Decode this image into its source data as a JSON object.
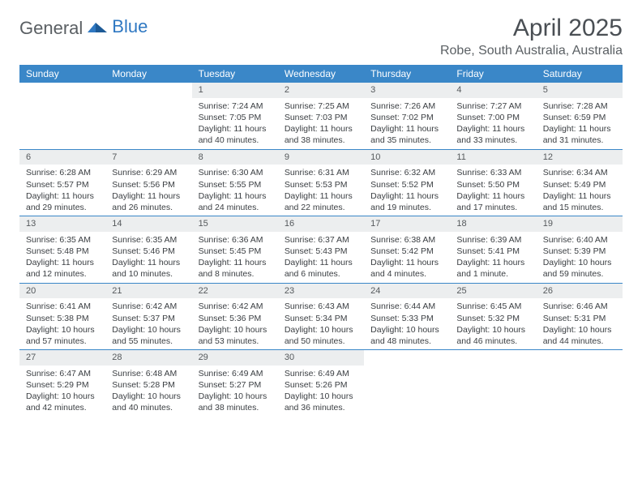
{
  "logo": {
    "part1": "General",
    "part2": "Blue"
  },
  "title": "April 2025",
  "location": "Robe, South Australia, Australia",
  "colors": {
    "header_bg": "#3a87c8",
    "header_text": "#ffffff",
    "daynum_bg": "#eceeef",
    "border": "#3a87c8",
    "text": "#3a3e42",
    "title_text": "#4a4f54"
  },
  "weekdays": [
    "Sunday",
    "Monday",
    "Tuesday",
    "Wednesday",
    "Thursday",
    "Friday",
    "Saturday"
  ],
  "weeks": [
    [
      {
        "n": "",
        "sr": "",
        "ss": "",
        "dl": ""
      },
      {
        "n": "",
        "sr": "",
        "ss": "",
        "dl": ""
      },
      {
        "n": "1",
        "sr": "Sunrise: 7:24 AM",
        "ss": "Sunset: 7:05 PM",
        "dl": "Daylight: 11 hours and 40 minutes."
      },
      {
        "n": "2",
        "sr": "Sunrise: 7:25 AM",
        "ss": "Sunset: 7:03 PM",
        "dl": "Daylight: 11 hours and 38 minutes."
      },
      {
        "n": "3",
        "sr": "Sunrise: 7:26 AM",
        "ss": "Sunset: 7:02 PM",
        "dl": "Daylight: 11 hours and 35 minutes."
      },
      {
        "n": "4",
        "sr": "Sunrise: 7:27 AM",
        "ss": "Sunset: 7:00 PM",
        "dl": "Daylight: 11 hours and 33 minutes."
      },
      {
        "n": "5",
        "sr": "Sunrise: 7:28 AM",
        "ss": "Sunset: 6:59 PM",
        "dl": "Daylight: 11 hours and 31 minutes."
      }
    ],
    [
      {
        "n": "6",
        "sr": "Sunrise: 6:28 AM",
        "ss": "Sunset: 5:57 PM",
        "dl": "Daylight: 11 hours and 29 minutes."
      },
      {
        "n": "7",
        "sr": "Sunrise: 6:29 AM",
        "ss": "Sunset: 5:56 PM",
        "dl": "Daylight: 11 hours and 26 minutes."
      },
      {
        "n": "8",
        "sr": "Sunrise: 6:30 AM",
        "ss": "Sunset: 5:55 PM",
        "dl": "Daylight: 11 hours and 24 minutes."
      },
      {
        "n": "9",
        "sr": "Sunrise: 6:31 AM",
        "ss": "Sunset: 5:53 PM",
        "dl": "Daylight: 11 hours and 22 minutes."
      },
      {
        "n": "10",
        "sr": "Sunrise: 6:32 AM",
        "ss": "Sunset: 5:52 PM",
        "dl": "Daylight: 11 hours and 19 minutes."
      },
      {
        "n": "11",
        "sr": "Sunrise: 6:33 AM",
        "ss": "Sunset: 5:50 PM",
        "dl": "Daylight: 11 hours and 17 minutes."
      },
      {
        "n": "12",
        "sr": "Sunrise: 6:34 AM",
        "ss": "Sunset: 5:49 PM",
        "dl": "Daylight: 11 hours and 15 minutes."
      }
    ],
    [
      {
        "n": "13",
        "sr": "Sunrise: 6:35 AM",
        "ss": "Sunset: 5:48 PM",
        "dl": "Daylight: 11 hours and 12 minutes."
      },
      {
        "n": "14",
        "sr": "Sunrise: 6:35 AM",
        "ss": "Sunset: 5:46 PM",
        "dl": "Daylight: 11 hours and 10 minutes."
      },
      {
        "n": "15",
        "sr": "Sunrise: 6:36 AM",
        "ss": "Sunset: 5:45 PM",
        "dl": "Daylight: 11 hours and 8 minutes."
      },
      {
        "n": "16",
        "sr": "Sunrise: 6:37 AM",
        "ss": "Sunset: 5:43 PM",
        "dl": "Daylight: 11 hours and 6 minutes."
      },
      {
        "n": "17",
        "sr": "Sunrise: 6:38 AM",
        "ss": "Sunset: 5:42 PM",
        "dl": "Daylight: 11 hours and 4 minutes."
      },
      {
        "n": "18",
        "sr": "Sunrise: 6:39 AM",
        "ss": "Sunset: 5:41 PM",
        "dl": "Daylight: 11 hours and 1 minute."
      },
      {
        "n": "19",
        "sr": "Sunrise: 6:40 AM",
        "ss": "Sunset: 5:39 PM",
        "dl": "Daylight: 10 hours and 59 minutes."
      }
    ],
    [
      {
        "n": "20",
        "sr": "Sunrise: 6:41 AM",
        "ss": "Sunset: 5:38 PM",
        "dl": "Daylight: 10 hours and 57 minutes."
      },
      {
        "n": "21",
        "sr": "Sunrise: 6:42 AM",
        "ss": "Sunset: 5:37 PM",
        "dl": "Daylight: 10 hours and 55 minutes."
      },
      {
        "n": "22",
        "sr": "Sunrise: 6:42 AM",
        "ss": "Sunset: 5:36 PM",
        "dl": "Daylight: 10 hours and 53 minutes."
      },
      {
        "n": "23",
        "sr": "Sunrise: 6:43 AM",
        "ss": "Sunset: 5:34 PM",
        "dl": "Daylight: 10 hours and 50 minutes."
      },
      {
        "n": "24",
        "sr": "Sunrise: 6:44 AM",
        "ss": "Sunset: 5:33 PM",
        "dl": "Daylight: 10 hours and 48 minutes."
      },
      {
        "n": "25",
        "sr": "Sunrise: 6:45 AM",
        "ss": "Sunset: 5:32 PM",
        "dl": "Daylight: 10 hours and 46 minutes."
      },
      {
        "n": "26",
        "sr": "Sunrise: 6:46 AM",
        "ss": "Sunset: 5:31 PM",
        "dl": "Daylight: 10 hours and 44 minutes."
      }
    ],
    [
      {
        "n": "27",
        "sr": "Sunrise: 6:47 AM",
        "ss": "Sunset: 5:29 PM",
        "dl": "Daylight: 10 hours and 42 minutes."
      },
      {
        "n": "28",
        "sr": "Sunrise: 6:48 AM",
        "ss": "Sunset: 5:28 PM",
        "dl": "Daylight: 10 hours and 40 minutes."
      },
      {
        "n": "29",
        "sr": "Sunrise: 6:49 AM",
        "ss": "Sunset: 5:27 PM",
        "dl": "Daylight: 10 hours and 38 minutes."
      },
      {
        "n": "30",
        "sr": "Sunrise: 6:49 AM",
        "ss": "Sunset: 5:26 PM",
        "dl": "Daylight: 10 hours and 36 minutes."
      },
      {
        "n": "",
        "sr": "",
        "ss": "",
        "dl": ""
      },
      {
        "n": "",
        "sr": "",
        "ss": "",
        "dl": ""
      },
      {
        "n": "",
        "sr": "",
        "ss": "",
        "dl": ""
      }
    ]
  ]
}
